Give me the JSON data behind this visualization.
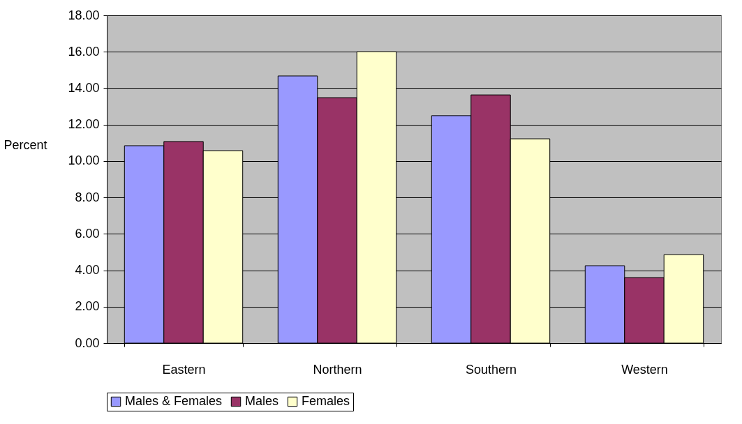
{
  "chart_data": {
    "type": "bar",
    "ylabel": "Percent",
    "categories": [
      "Eastern",
      "Northern",
      "Southern",
      "Western"
    ],
    "series": [
      {
        "name": "Males & Females",
        "color": "#9999ff",
        "values": [
          10.84,
          14.67,
          12.49,
          4.25
        ]
      },
      {
        "name": "Males",
        "color": "#993366",
        "values": [
          11.07,
          13.48,
          13.63,
          3.6
        ]
      },
      {
        "name": "Females",
        "color": "#ffffcc",
        "values": [
          10.57,
          16.01,
          11.22,
          4.86
        ]
      }
    ],
    "ylim": [
      0,
      18
    ],
    "yticks": [
      {
        "value": 0,
        "label": "0.00"
      },
      {
        "value": 2,
        "label": "2.00"
      },
      {
        "value": 4,
        "label": "4.00"
      },
      {
        "value": 6,
        "label": "6.00"
      },
      {
        "value": 8,
        "label": "8.00"
      },
      {
        "value": 10,
        "label": "10.00"
      },
      {
        "value": 12,
        "label": "12.00"
      },
      {
        "value": 14,
        "label": "14.00"
      },
      {
        "value": 16,
        "label": "16.00"
      },
      {
        "value": 18,
        "label": "18.00"
      }
    ],
    "grid": "y",
    "legend": "bottom"
  }
}
